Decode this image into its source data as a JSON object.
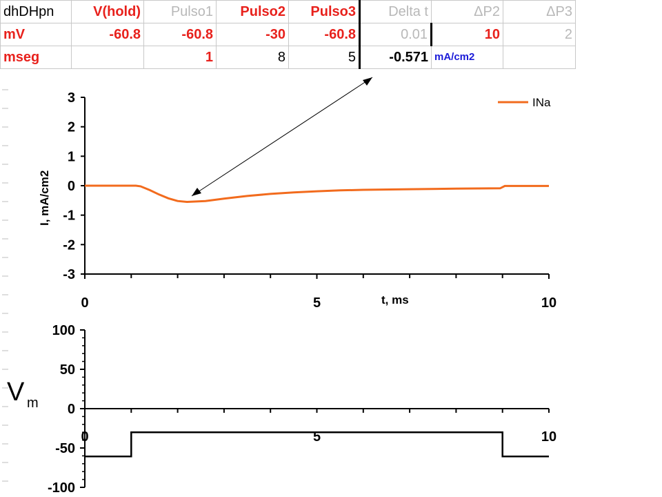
{
  "sheet": {
    "rows": [
      [
        {
          "text": "dhDHpn",
          "style": "black"
        },
        {
          "text": "V(hold)",
          "style": "red"
        },
        {
          "text": "Pulso1",
          "style": "grey"
        },
        {
          "text": "Pulso2",
          "style": "red"
        },
        {
          "text": "Pulso3",
          "style": "red"
        },
        {
          "text": "Delta t",
          "style": "grey"
        },
        {
          "text": "ΔP2",
          "style": "grey"
        },
        {
          "text": "ΔP3",
          "style": "grey"
        }
      ],
      [
        {
          "text": "mV",
          "style": "red"
        },
        {
          "text": "-60.8",
          "style": "red"
        },
        {
          "text": "-60.8",
          "style": "red"
        },
        {
          "text": "-30",
          "style": "red"
        },
        {
          "text": "-60.8",
          "style": "red"
        },
        {
          "text": "0.01",
          "style": "grey"
        },
        {
          "text": "10",
          "style": "red"
        },
        {
          "text": "2",
          "style": "grey"
        }
      ],
      [
        {
          "text": "mseg",
          "style": "red"
        },
        {
          "text": "",
          "style": "black"
        },
        {
          "text": "1",
          "style": "red"
        },
        {
          "text": "8",
          "style": "black"
        },
        {
          "text": "5",
          "style": "black"
        },
        {
          "text": "-0.571",
          "style": "black bold"
        },
        {
          "text": "mA/cm2",
          "style": "blue"
        },
        {
          "text": "",
          "style": "black"
        }
      ]
    ]
  },
  "chart_data": [
    {
      "type": "line",
      "title": "",
      "xlabel": "t, ms",
      "ylabel": "I, mA/cm2",
      "xlim": [
        0,
        10
      ],
      "ylim": [
        -3,
        3
      ],
      "x_tick_labels": [
        "0",
        "5",
        "10"
      ],
      "y_tick_labels": [
        "3",
        "2",
        "1",
        "0",
        "-1",
        "-2",
        "-3"
      ],
      "legend": "top-right",
      "grid": false,
      "series": [
        {
          "name": "INa",
          "color": "#f26b1d",
          "x": [
            0,
            1.1,
            1.2,
            1.4,
            1.6,
            1.8,
            2.0,
            2.2,
            2.6,
            3.0,
            3.5,
            4.0,
            4.5,
            5.0,
            5.5,
            6.0,
            7.0,
            8.0,
            8.95,
            9.05,
            10.0
          ],
          "y": [
            0,
            0,
            -0.02,
            -0.15,
            -0.3,
            -0.43,
            -0.52,
            -0.55,
            -0.52,
            -0.44,
            -0.35,
            -0.28,
            -0.23,
            -0.19,
            -0.16,
            -0.14,
            -0.12,
            -0.1,
            -0.09,
            -0.01,
            -0.01
          ]
        }
      ],
      "annotation": {
        "text": "-0.571",
        "arrow_to": [
          2.3,
          -0.35
        ]
      }
    },
    {
      "type": "line",
      "title": "",
      "ylabel": "Vm",
      "xlim": [
        0,
        10
      ],
      "ylim": [
        -100,
        100
      ],
      "x_tick_labels": [
        "0",
        "5",
        "10"
      ],
      "y_tick_labels": [
        "100",
        "50",
        "0",
        "-50",
        "-100"
      ],
      "grid": false,
      "series": [
        {
          "name": "",
          "color": "#000000",
          "x": [
            0,
            1,
            1,
            9,
            9,
            10
          ],
          "y": [
            -60.8,
            -60.8,
            -30,
            -30,
            -60.8,
            -60.8
          ]
        }
      ]
    }
  ],
  "ylabel_bottom": {
    "main": "V",
    "sub": "m"
  }
}
